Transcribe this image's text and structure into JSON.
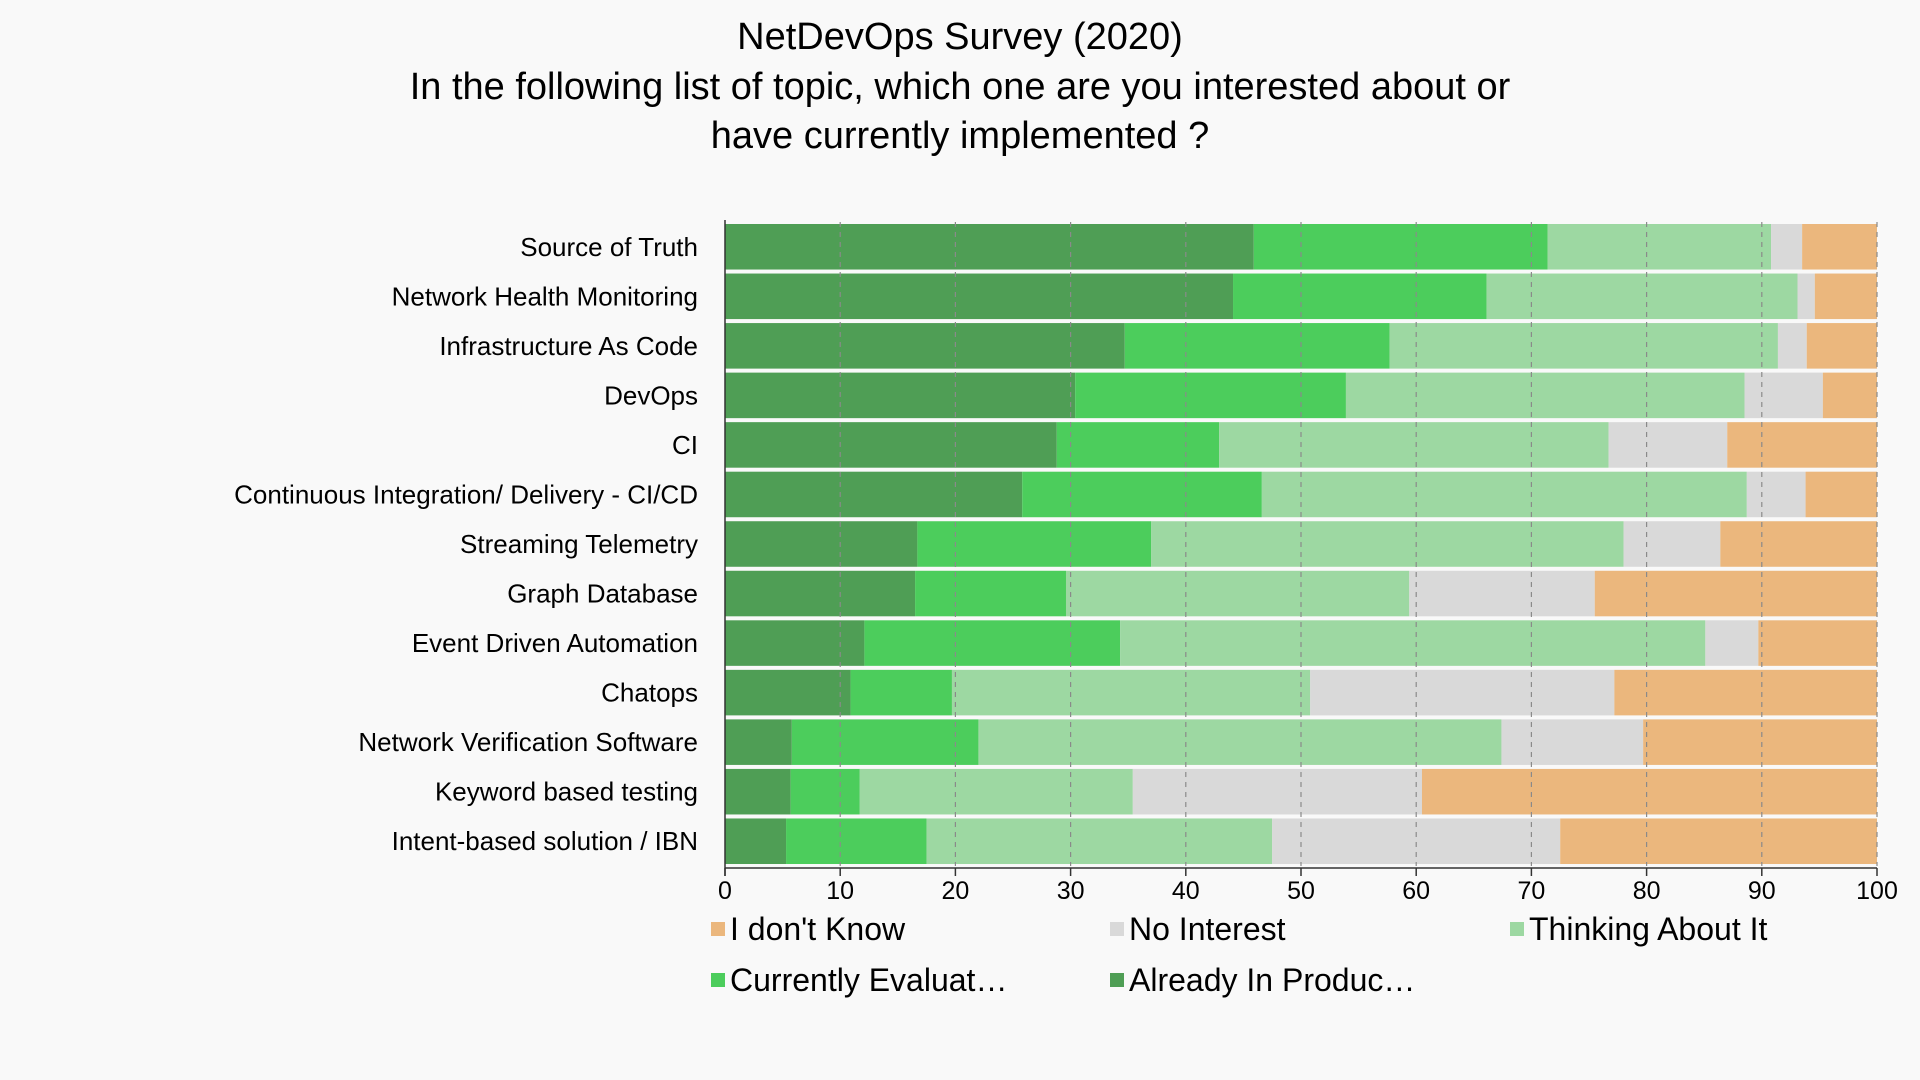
{
  "chart_data": {
    "type": "bar",
    "orientation": "horizontal",
    "stacked": true,
    "title_lines": [
      "NetDevOps Survey (2020)",
      "In the following list of topic, which one are you interested about or",
      "have currently implemented ?"
    ],
    "categories": [
      "Source of Truth",
      "Network Health Monitoring",
      "Infrastructure As Code",
      "DevOps",
      "CI",
      "Continuous Integration/ Delivery - CI/CD",
      "Streaming Telemetry",
      "Graph Database",
      "Event Driven Automation",
      "Chatops",
      "Network Verification Software",
      "Keyword based testing",
      "Intent-based solution / IBN"
    ],
    "series": [
      {
        "name": "Already In Produc…",
        "color": "#4f9e55",
        "values": [
          45.9,
          44.1,
          34.7,
          30.4,
          28.8,
          25.8,
          16.7,
          16.5,
          12.1,
          10.9,
          5.8,
          5.7,
          5.3
        ]
      },
      {
        "name": "Currently Evaluat…",
        "color": "#4ccd5c",
        "values": [
          25.5,
          22.0,
          23.0,
          23.5,
          14.1,
          20.8,
          20.3,
          13.1,
          22.2,
          8.8,
          16.2,
          6.0,
          12.2
        ]
      },
      {
        "name": "Thinking About It",
        "color": "#9dd8a2",
        "values": [
          19.4,
          27.0,
          33.7,
          34.6,
          33.8,
          42.1,
          41.0,
          29.8,
          50.8,
          31.1,
          45.4,
          23.7,
          30.0
        ]
      },
      {
        "name": "No Interest",
        "color": "#d9d9d9",
        "values": [
          2.7,
          1.5,
          2.5,
          6.8,
          10.3,
          5.1,
          8.4,
          16.1,
          4.6,
          26.4,
          12.3,
          25.1,
          25.0
        ]
      },
      {
        "name": "I don't Know",
        "color": "#ebb77d",
        "values": [
          6.5,
          5.4,
          6.1,
          4.7,
          13.0,
          6.2,
          13.6,
          24.5,
          10.3,
          22.8,
          20.3,
          39.5,
          27.5
        ]
      }
    ],
    "legend_order": [
      "I don't Know",
      "No Interest",
      "Thinking About It",
      "Currently Evaluat…",
      "Already In Produc…"
    ],
    "x_ticks": [
      "0",
      "10",
      "20",
      "30",
      "40",
      "50",
      "60",
      "70",
      "80",
      "90",
      "100"
    ],
    "xlim": [
      0,
      100
    ],
    "grid": true,
    "legend_position": "bottom"
  }
}
